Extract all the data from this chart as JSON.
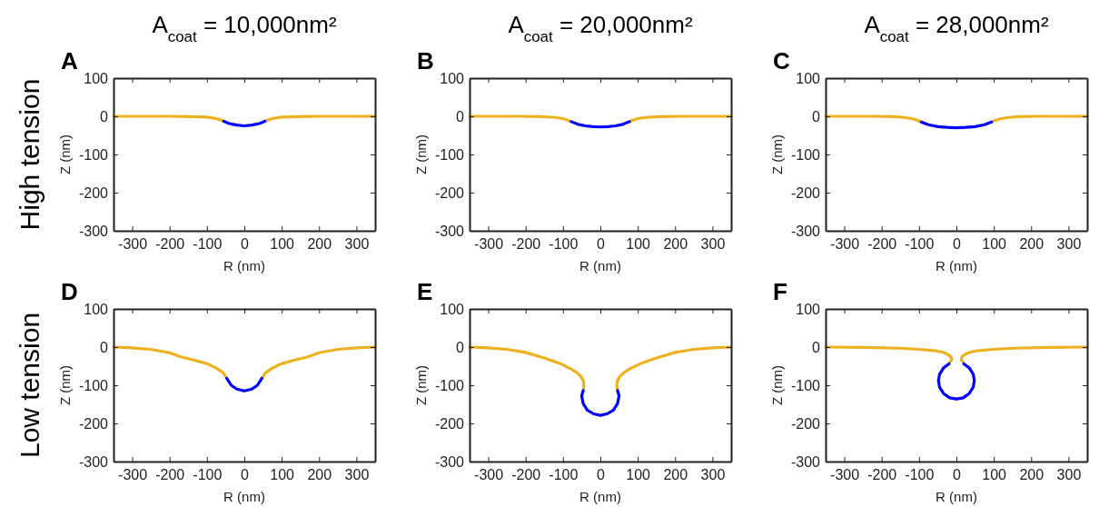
{
  "chart_data": [
    {
      "type": "line",
      "title": "A",
      "subtitle": "A$_{coat}$ = 10,000nm²",
      "annotations": [
        "High tension"
      ],
      "xlabel": "R (nm)",
      "ylabel": "Z (nm)",
      "xlim": [
        -350,
        350
      ],
      "ylim": [
        -300,
        100
      ],
      "xticks": [
        -300,
        -200,
        -100,
        0,
        100,
        200,
        300
      ],
      "yticks": [
        -300,
        -200,
        -100,
        0,
        100
      ],
      "series": [
        {
          "color": "#edb120",
          "x": [
            -350,
            -200,
            -150,
            -100,
            -80,
            -65,
            -55
          ],
          "values": [
            0,
            0,
            -1,
            -2,
            -5,
            -9,
            -13
          ]
        },
        {
          "color": "#edb120",
          "x": [
            55,
            65,
            80,
            100,
            150,
            200,
            350
          ],
          "values": [
            -13,
            -9,
            -5,
            -2,
            -1,
            0,
            0
          ]
        },
        {
          "color": "#0000ff",
          "x": [
            -55,
            -40,
            -20,
            0,
            20,
            40,
            55
          ],
          "values": [
            -13,
            -19,
            -23,
            -25,
            -23,
            -19,
            -13
          ]
        }
      ]
    },
    {
      "type": "line",
      "title": "B",
      "subtitle": "A$_{coat}$ = 20,000nm²",
      "xlabel": "R (nm)",
      "ylabel": "Z (nm)",
      "xlim": [
        -350,
        350
      ],
      "ylim": [
        -300,
        100
      ],
      "xticks": [
        -300,
        -200,
        -100,
        0,
        100,
        200,
        300
      ],
      "yticks": [
        -300,
        -200,
        -100,
        0,
        100
      ],
      "series": [
        {
          "color": "#edb120",
          "x": [
            -350,
            -220,
            -160,
            -120,
            -100,
            -88,
            -78
          ],
          "values": [
            0,
            0,
            -1,
            -3,
            -6,
            -10,
            -14
          ]
        },
        {
          "color": "#edb120",
          "x": [
            78,
            88,
            100,
            120,
            160,
            220,
            350
          ],
          "values": [
            -14,
            -10,
            -6,
            -3,
            -1,
            0,
            0
          ]
        },
        {
          "color": "#0000ff",
          "x": [
            -78,
            -60,
            -40,
            -20,
            0,
            20,
            40,
            60,
            78
          ],
          "values": [
            -14,
            -21,
            -25,
            -27,
            -28,
            -27,
            -25,
            -21,
            -14
          ]
        }
      ]
    },
    {
      "type": "line",
      "title": "C",
      "subtitle": "A$_{coat}$ = 28,000nm²",
      "xlabel": "R (nm)",
      "ylabel": "Z (nm)",
      "xlim": [
        -350,
        350
      ],
      "ylim": [
        -300,
        100
      ],
      "xticks": [
        -300,
        -200,
        -100,
        0,
        100,
        200,
        300
      ],
      "yticks": [
        -300,
        -200,
        -100,
        0,
        100
      ],
      "series": [
        {
          "color": "#edb120",
          "x": [
            -350,
            -220,
            -170,
            -140,
            -120,
            -105,
            -94
          ],
          "values": [
            0,
            0,
            -1,
            -3,
            -6,
            -10,
            -15
          ]
        },
        {
          "color": "#edb120",
          "x": [
            94,
            105,
            120,
            140,
            170,
            220,
            350
          ],
          "values": [
            -15,
            -10,
            -6,
            -3,
            -1,
            0,
            0
          ]
        },
        {
          "color": "#0000ff",
          "x": [
            -94,
            -75,
            -50,
            -25,
            0,
            25,
            50,
            75,
            94
          ],
          "values": [
            -15,
            -22,
            -27,
            -29,
            -30,
            -29,
            -27,
            -22,
            -15
          ]
        }
      ]
    },
    {
      "type": "line",
      "title": "D",
      "annotations": [
        "Low tension"
      ],
      "xlabel": "R (nm)",
      "ylabel": "Z (nm)",
      "xlim": [
        -350,
        350
      ],
      "ylim": [
        -300,
        100
      ],
      "xticks": [
        -300,
        -200,
        -100,
        0,
        100,
        200,
        300
      ],
      "yticks": [
        -300,
        -200,
        -100,
        0,
        100
      ],
      "series": [
        {
          "color": "#edb120",
          "x": [
            -350,
            -300,
            -250,
            -200,
            -172,
            -130,
            -96,
            -75,
            -57,
            -47
          ],
          "values": [
            0,
            -2,
            -6,
            -15,
            -25,
            -35,
            -45,
            -55,
            -67,
            -82
          ]
        },
        {
          "color": "#edb120",
          "x": [
            47,
            57,
            75,
            96,
            130,
            172,
            200,
            250,
            300,
            350
          ],
          "values": [
            -82,
            -67,
            -55,
            -45,
            -35,
            -25,
            -15,
            -6,
            -2,
            0
          ]
        },
        {
          "color": "#0000ff",
          "x": [
            -47,
            -35,
            -20,
            0,
            20,
            35,
            47
          ],
          "values": [
            -82,
            -100,
            -110,
            -115,
            -110,
            -100,
            -82
          ]
        }
      ]
    },
    {
      "type": "line",
      "title": "E",
      "xlabel": "R (nm)",
      "ylabel": "Z (nm)",
      "xlim": [
        -350,
        350
      ],
      "ylim": [
        -300,
        100
      ],
      "xticks": [
        -300,
        -200,
        -100,
        0,
        100,
        200,
        300
      ],
      "yticks": [
        -300,
        -200,
        -100,
        0,
        100
      ],
      "series": [
        {
          "color": "#edb120",
          "x": [
            -350,
            -300,
            -250,
            -200,
            -152,
            -110,
            -83,
            -65,
            -52,
            -45,
            -44,
            -46
          ],
          "values": [
            0,
            -2,
            -6,
            -14,
            -28,
            -42,
            -55,
            -65,
            -77,
            -90,
            -102,
            -114
          ]
        },
        {
          "color": "#edb120",
          "x": [
            46,
            44,
            45,
            52,
            65,
            83,
            110,
            152,
            200,
            250,
            300,
            350
          ],
          "values": [
            -114,
            -102,
            -90,
            -77,
            -65,
            -55,
            -42,
            -28,
            -14,
            -6,
            -2,
            0
          ]
        },
        {
          "color": "#0000ff",
          "x": [
            -46,
            -50,
            -46,
            -35,
            -18,
            0,
            18,
            35,
            46,
            50,
            46
          ],
          "values": [
            -114,
            -128,
            -148,
            -165,
            -175,
            -179,
            -175,
            -165,
            -148,
            -128,
            -114
          ]
        }
      ]
    },
    {
      "type": "line",
      "title": "F",
      "xlabel": "R (nm)",
      "ylabel": "Z (nm)",
      "xlim": [
        -350,
        350
      ],
      "ylim": [
        -300,
        100
      ],
      "xticks": [
        -300,
        -200,
        -100,
        0,
        100,
        200,
        300
      ],
      "yticks": [
        -300,
        -200,
        -100,
        0,
        100
      ],
      "series": [
        {
          "color": "#edb120",
          "x": [
            -350,
            -250,
            -150,
            -100,
            -60,
            -38,
            -25,
            -16,
            -13,
            -14,
            -18
          ],
          "values": [
            0,
            -1,
            -3,
            -6,
            -9,
            -13,
            -18,
            -24,
            -30,
            -35,
            -40
          ]
        },
        {
          "color": "#edb120",
          "x": [
            18,
            14,
            13,
            16,
            25,
            38,
            60,
            100,
            150,
            250,
            350
          ],
          "values": [
            -40,
            -35,
            -30,
            -24,
            -18,
            -13,
            -9,
            -6,
            -3,
            -1,
            0
          ]
        },
        {
          "color": "#0000ff",
          "x": [
            -20,
            -34,
            -45,
            -48,
            -45,
            -34,
            -18,
            0,
            18,
            34,
            45,
            48,
            45,
            34,
            20
          ],
          "values": [
            -44,
            -54,
            -71,
            -88,
            -105,
            -122,
            -133,
            -136,
            -133,
            -122,
            -105,
            -88,
            -71,
            -54,
            -44
          ]
        }
      ]
    }
  ]
}
